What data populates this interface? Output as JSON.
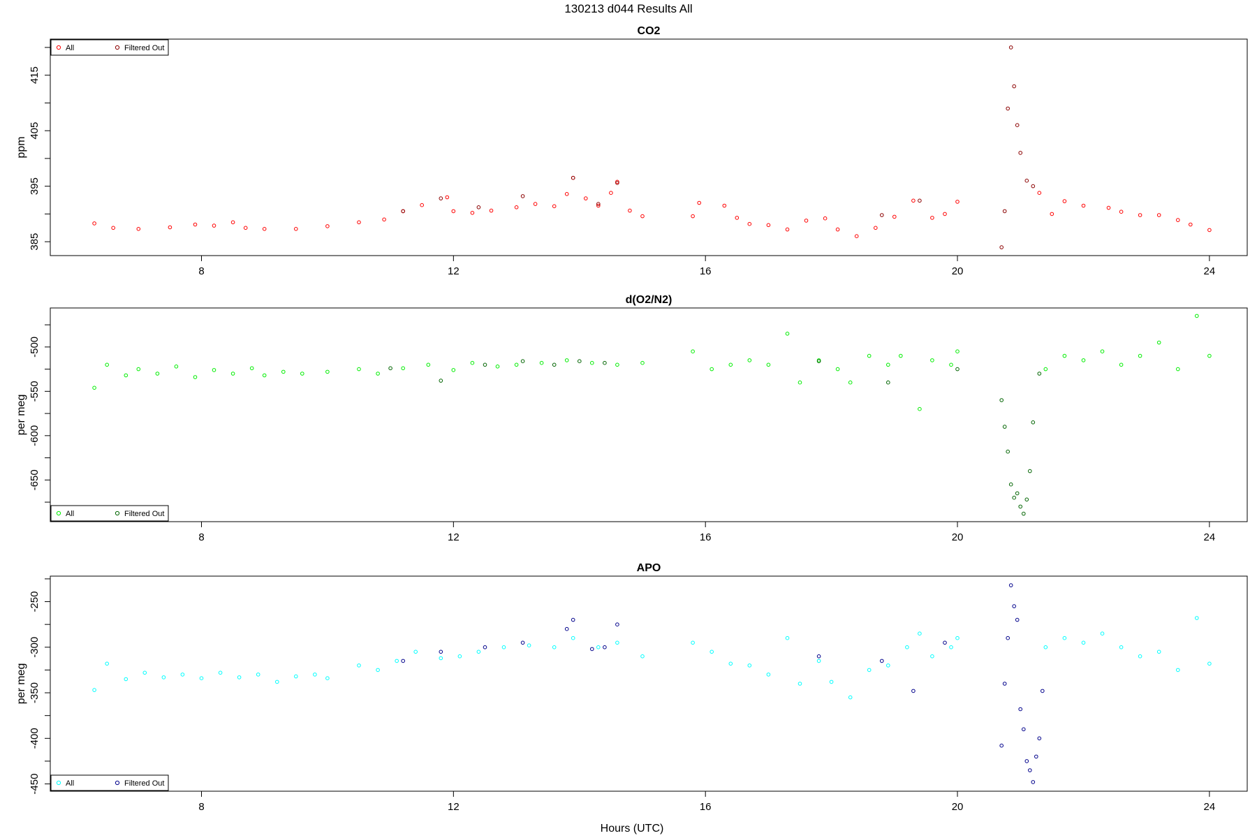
{
  "figure": {
    "title": "130213   d044   Results All",
    "xlabel": "Hours (UTC)"
  },
  "chart_data": [
    {
      "type": "scatter",
      "title": "CO2",
      "ylabel": "ppm",
      "xlim": [
        5.6,
        24.6
      ],
      "ylim": [
        382.5,
        421.5
      ],
      "xticks": [
        8,
        12,
        16,
        20,
        24
      ],
      "yticks": [
        385,
        395,
        405,
        415
      ],
      "legend": {
        "position": "top-left",
        "entries": [
          "All",
          "Filtered Out"
        ]
      },
      "colors": {
        "all": "#ff0000",
        "filtered": "#8b0000"
      },
      "series": [
        {
          "name": "All",
          "points": [
            [
              6.3,
              388.3
            ],
            [
              6.6,
              387.5
            ],
            [
              7.0,
              387.3
            ],
            [
              7.5,
              387.6
            ],
            [
              7.9,
              388.1
            ],
            [
              8.2,
              387.9
            ],
            [
              8.5,
              388.5
            ],
            [
              8.7,
              387.5
            ],
            [
              9.0,
              387.3
            ],
            [
              9.5,
              387.3
            ],
            [
              10.0,
              387.8
            ],
            [
              10.5,
              388.5
            ],
            [
              10.9,
              389.0
            ],
            [
              11.2,
              390.5
            ],
            [
              11.5,
              391.6
            ],
            [
              11.9,
              393.0
            ],
            [
              12.0,
              390.5
            ],
            [
              12.3,
              390.2
            ],
            [
              12.6,
              390.6
            ],
            [
              13.0,
              391.2
            ],
            [
              13.3,
              391.8
            ],
            [
              13.6,
              391.4
            ],
            [
              13.8,
              393.6
            ],
            [
              13.9,
              396.5
            ],
            [
              14.1,
              392.8
            ],
            [
              14.3,
              391.5
            ],
            [
              14.5,
              393.8
            ],
            [
              14.6,
              395.8
            ],
            [
              14.8,
              390.6
            ],
            [
              15.0,
              389.6
            ],
            [
              15.8,
              389.6
            ],
            [
              15.9,
              392.0
            ],
            [
              16.3,
              391.5
            ],
            [
              16.5,
              389.3
            ],
            [
              16.7,
              388.2
            ],
            [
              17.0,
              388.0
            ],
            [
              17.3,
              387.2
            ],
            [
              17.6,
              388.8
            ],
            [
              17.9,
              389.2
            ],
            [
              18.1,
              387.2
            ],
            [
              18.4,
              386.0
            ],
            [
              18.7,
              387.5
            ],
            [
              19.0,
              389.5
            ],
            [
              19.3,
              392.4
            ],
            [
              19.6,
              389.3
            ],
            [
              19.8,
              390.0
            ],
            [
              20.0,
              392.2
            ],
            [
              21.3,
              393.8
            ],
            [
              21.5,
              390.0
            ],
            [
              21.7,
              392.3
            ],
            [
              22.0,
              391.5
            ],
            [
              22.4,
              391.1
            ],
            [
              22.6,
              390.4
            ],
            [
              22.9,
              389.8
            ],
            [
              23.2,
              389.8
            ],
            [
              23.5,
              388.9
            ],
            [
              23.7,
              388.1
            ],
            [
              24.0,
              387.1
            ]
          ]
        },
        {
          "name": "Filtered Out",
          "points": [
            [
              11.2,
              390.5
            ],
            [
              11.8,
              392.8
            ],
            [
              12.4,
              391.2
            ],
            [
              13.1,
              393.2
            ],
            [
              13.9,
              396.5
            ],
            [
              14.3,
              391.8
            ],
            [
              14.6,
              395.6
            ],
            [
              18.8,
              389.8
            ],
            [
              19.4,
              392.4
            ],
            [
              20.7,
              384.0
            ],
            [
              20.75,
              390.5
            ],
            [
              20.8,
              409.0
            ],
            [
              20.85,
              420.0
            ],
            [
              20.9,
              413.0
            ],
            [
              20.95,
              406.0
            ],
            [
              21.0,
              401.0
            ],
            [
              21.1,
              396.0
            ],
            [
              21.2,
              395.0
            ]
          ]
        }
      ]
    },
    {
      "type": "scatter",
      "title": "d(O2/N2)",
      "ylabel": "per meg",
      "xlim": [
        5.6,
        24.6
      ],
      "ylim": [
        -697,
        -456
      ],
      "xticks": [
        8,
        12,
        16,
        20,
        24
      ],
      "yticks": [
        -500,
        -550,
        -600,
        -650
      ],
      "legend": {
        "position": "bottom-left",
        "entries": [
          "All",
          "Filtered Out"
        ]
      },
      "colors": {
        "all": "#00ee00",
        "filtered": "#006400"
      },
      "series": [
        {
          "name": "All",
          "points": [
            [
              6.3,
              -546
            ],
            [
              6.5,
              -520
            ],
            [
              6.8,
              -532
            ],
            [
              7.0,
              -525
            ],
            [
              7.3,
              -530
            ],
            [
              7.6,
              -522
            ],
            [
              7.9,
              -534
            ],
            [
              8.2,
              -526
            ],
            [
              8.5,
              -530
            ],
            [
              8.8,
              -524
            ],
            [
              9.0,
              -532
            ],
            [
              9.3,
              -528
            ],
            [
              9.6,
              -530
            ],
            [
              10.0,
              -528
            ],
            [
              10.5,
              -525
            ],
            [
              10.8,
              -530
            ],
            [
              11.2,
              -524
            ],
            [
              11.6,
              -520
            ],
            [
              12.0,
              -526
            ],
            [
              12.3,
              -518
            ],
            [
              12.7,
              -522
            ],
            [
              13.0,
              -520
            ],
            [
              13.4,
              -518
            ],
            [
              13.8,
              -515
            ],
            [
              14.2,
              -518
            ],
            [
              14.6,
              -520
            ],
            [
              15.0,
              -518
            ],
            [
              15.8,
              -505
            ],
            [
              16.1,
              -525
            ],
            [
              16.4,
              -520
            ],
            [
              16.7,
              -515
            ],
            [
              17.0,
              -520
            ],
            [
              17.3,
              -485
            ],
            [
              17.5,
              -540
            ],
            [
              17.8,
              -515
            ],
            [
              18.1,
              -525
            ],
            [
              18.3,
              -540
            ],
            [
              18.6,
              -510
            ],
            [
              18.9,
              -520
            ],
            [
              19.1,
              -510
            ],
            [
              19.4,
              -570
            ],
            [
              19.6,
              -515
            ],
            [
              19.9,
              -520
            ],
            [
              20.0,
              -505
            ],
            [
              21.4,
              -525
            ],
            [
              21.7,
              -510
            ],
            [
              22.0,
              -515
            ],
            [
              22.3,
              -505
            ],
            [
              22.6,
              -520
            ],
            [
              22.9,
              -510
            ],
            [
              23.2,
              -495
            ],
            [
              23.5,
              -525
            ],
            [
              23.8,
              -465
            ],
            [
              24.0,
              -510
            ]
          ]
        },
        {
          "name": "Filtered Out",
          "points": [
            [
              11.0,
              -524
            ],
            [
              11.8,
              -538
            ],
            [
              12.5,
              -520
            ],
            [
              13.1,
              -516
            ],
            [
              13.6,
              -520
            ],
            [
              14.0,
              -516
            ],
            [
              14.4,
              -518
            ],
            [
              17.8,
              -516
            ],
            [
              18.9,
              -540
            ],
            [
              20.0,
              -525
            ],
            [
              20.7,
              -560
            ],
            [
              20.75,
              -590
            ],
            [
              20.8,
              -618
            ],
            [
              20.85,
              -655
            ],
            [
              20.9,
              -670
            ],
            [
              20.95,
              -665
            ],
            [
              21.0,
              -680
            ],
            [
              21.05,
              -688
            ],
            [
              21.1,
              -672
            ],
            [
              21.15,
              -640
            ],
            [
              21.2,
              -585
            ],
            [
              21.3,
              -530
            ]
          ]
        }
      ]
    },
    {
      "type": "scatter",
      "title": "APO",
      "ylabel": "per meg",
      "xlim": [
        5.6,
        24.6
      ],
      "ylim": [
        -458,
        -222
      ],
      "xticks": [
        8,
        12,
        16,
        20,
        24
      ],
      "yticks": [
        -250,
        -300,
        -350,
        -400,
        -450
      ],
      "legend": {
        "position": "bottom-left",
        "entries": [
          "All",
          "Filtered Out"
        ]
      },
      "colors": {
        "all": "#00ffff",
        "filtered": "#00008b"
      },
      "series": [
        {
          "name": "All",
          "points": [
            [
              6.3,
              -347
            ],
            [
              6.5,
              -318
            ],
            [
              6.8,
              -335
            ],
            [
              7.1,
              -328
            ],
            [
              7.4,
              -333
            ],
            [
              7.7,
              -330
            ],
            [
              8.0,
              -334
            ],
            [
              8.3,
              -328
            ],
            [
              8.6,
              -333
            ],
            [
              8.9,
              -330
            ],
            [
              9.2,
              -338
            ],
            [
              9.5,
              -332
            ],
            [
              9.8,
              -330
            ],
            [
              10.0,
              -334
            ],
            [
              10.5,
              -320
            ],
            [
              10.8,
              -325
            ],
            [
              11.1,
              -315
            ],
            [
              11.4,
              -305
            ],
            [
              11.8,
              -312
            ],
            [
              12.1,
              -310
            ],
            [
              12.4,
              -305
            ],
            [
              12.8,
              -300
            ],
            [
              13.2,
              -298
            ],
            [
              13.6,
              -300
            ],
            [
              13.9,
              -290
            ],
            [
              14.3,
              -300
            ],
            [
              14.6,
              -295
            ],
            [
              15.0,
              -310
            ],
            [
              15.8,
              -295
            ],
            [
              16.1,
              -305
            ],
            [
              16.4,
              -318
            ],
            [
              16.7,
              -320
            ],
            [
              17.0,
              -330
            ],
            [
              17.3,
              -290
            ],
            [
              17.5,
              -340
            ],
            [
              17.8,
              -315
            ],
            [
              18.0,
              -338
            ],
            [
              18.3,
              -355
            ],
            [
              18.6,
              -325
            ],
            [
              18.9,
              -320
            ],
            [
              19.2,
              -300
            ],
            [
              19.4,
              -285
            ],
            [
              19.6,
              -310
            ],
            [
              19.9,
              -300
            ],
            [
              20.0,
              -290
            ],
            [
              21.4,
              -300
            ],
            [
              21.7,
              -290
            ],
            [
              22.0,
              -295
            ],
            [
              22.3,
              -285
            ],
            [
              22.6,
              -300
            ],
            [
              22.9,
              -310
            ],
            [
              23.2,
              -305
            ],
            [
              23.5,
              -325
            ],
            [
              23.8,
              -268
            ],
            [
              24.0,
              -318
            ]
          ]
        },
        {
          "name": "Filtered Out",
          "points": [
            [
              11.2,
              -315
            ],
            [
              11.8,
              -305
            ],
            [
              12.5,
              -300
            ],
            [
              13.1,
              -295
            ],
            [
              13.8,
              -280
            ],
            [
              13.9,
              -270
            ],
            [
              14.2,
              -302
            ],
            [
              14.4,
              -300
            ],
            [
              14.6,
              -275
            ],
            [
              17.8,
              -310
            ],
            [
              18.8,
              -315
            ],
            [
              19.3,
              -348
            ],
            [
              19.8,
              -295
            ],
            [
              20.7,
              -408
            ],
            [
              20.75,
              -340
            ],
            [
              20.8,
              -290
            ],
            [
              20.85,
              -232
            ],
            [
              20.9,
              -255
            ],
            [
              20.95,
              -270
            ],
            [
              21.0,
              -368
            ],
            [
              21.05,
              -390
            ],
            [
              21.1,
              -425
            ],
            [
              21.15,
              -435
            ],
            [
              21.2,
              -448
            ],
            [
              21.25,
              -420
            ],
            [
              21.3,
              -400
            ],
            [
              21.35,
              -348
            ]
          ]
        }
      ]
    }
  ]
}
